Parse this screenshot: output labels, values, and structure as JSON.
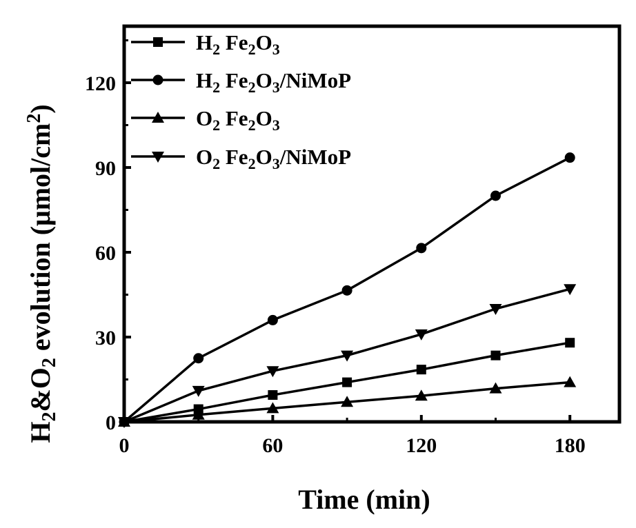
{
  "chart_data": {
    "type": "line",
    "title": "",
    "xlabel": "Time (min)",
    "ylabel": "H₂&O₂ evolution (μmol/cm²)",
    "ylabel_parts": {
      "part1": "H",
      "sub1": "2",
      "part2": "&O",
      "sub2": "2",
      "part3": " evolution (μmol/cm",
      "sup": "2",
      "part4": ")"
    },
    "xlim": [
      0,
      200
    ],
    "ylim": [
      0,
      140
    ],
    "xticks": [
      0,
      60,
      120,
      180
    ],
    "yticks": [
      0,
      30,
      60,
      90,
      120
    ],
    "grid": false,
    "legend_position": "top-left",
    "x": [
      0,
      30,
      60,
      90,
      120,
      150,
      180
    ],
    "series": [
      {
        "name": "H2 Fe2O3",
        "label_parts": {
          "a": "H",
          "sub_a": "2",
          "b": " Fe",
          "sub_b": "2",
          "c": "O",
          "sub_c": "3",
          "d": ""
        },
        "marker": "square",
        "color": "#000000",
        "values": [
          0,
          4.5,
          9.5,
          14,
          18.5,
          23.5,
          28
        ]
      },
      {
        "name": "H2 Fe2O3/NiMoP",
        "label_parts": {
          "a": "H",
          "sub_a": "2",
          "b": " Fe",
          "sub_b": "2",
          "c": "O",
          "sub_c": "3",
          "d": "/NiMoP"
        },
        "marker": "circle",
        "color": "#000000",
        "values": [
          0,
          22.5,
          36,
          46.5,
          61.5,
          80,
          93.5
        ]
      },
      {
        "name": "O2 Fe2O3",
        "label_parts": {
          "a": "O",
          "sub_a": "2",
          "b": " Fe",
          "sub_b": "2",
          "c": "O",
          "sub_c": "3",
          "d": ""
        },
        "marker": "triangle-up",
        "color": "#000000",
        "values": [
          0,
          2.5,
          4.8,
          7,
          9.2,
          11.8,
          14
        ]
      },
      {
        "name": "O2 Fe2O3/NiMoP",
        "label_parts": {
          "a": "O",
          "sub_a": "2",
          "b": " Fe",
          "sub_b": "2",
          "c": "O",
          "sub_c": "3",
          "d": "/NiMoP"
        },
        "marker": "triangle-down",
        "color": "#000000",
        "values": [
          0,
          11,
          18,
          23.5,
          31,
          40,
          47
        ]
      }
    ]
  }
}
